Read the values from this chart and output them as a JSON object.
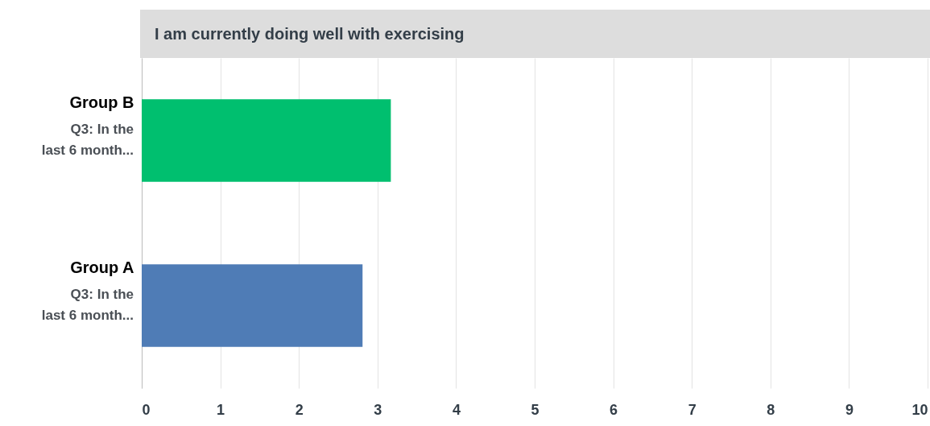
{
  "chart_data": {
    "type": "bar",
    "orientation": "horizontal",
    "title": "I am currently doing well with exercising",
    "categories": [
      "Group B",
      "Group A"
    ],
    "values": [
      3.17,
      2.81
    ],
    "colors": [
      "#00bf6f",
      "#4f7cb6"
    ],
    "xlim": [
      0,
      10
    ],
    "xticks": [
      0,
      1,
      2,
      3,
      4,
      5,
      6,
      7,
      8,
      9,
      10
    ],
    "grid": "x",
    "annotations": [
      "Q3: In the last 6 month...",
      "Q3: In the last 6 month..."
    ]
  }
}
